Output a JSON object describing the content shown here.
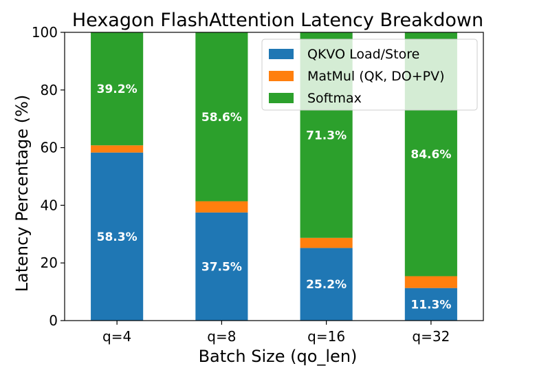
{
  "chart_data": {
    "type": "bar",
    "stacked": true,
    "title": "Hexagon FlashAttention Latency Breakdown",
    "xlabel": "Batch Size (qo_len)",
    "ylabel": "Latency Percentage (%)",
    "ylim": [
      0,
      100
    ],
    "yticks": [
      0,
      20,
      40,
      60,
      80,
      100
    ],
    "categories": [
      "q=4",
      "q=8",
      "q=16",
      "q=32"
    ],
    "series": [
      {
        "name": "QKVO Load/Store",
        "color": "#1f77b4",
        "values": [
          58.3,
          37.5,
          25.2,
          11.3
        ],
        "labels": [
          "58.3%",
          "37.5%",
          "25.2%",
          "11.3%"
        ]
      },
      {
        "name": "MatMul (QK, DO+PV)",
        "color": "#ff7f0e",
        "values": [
          2.5,
          3.9,
          3.5,
          4.1
        ],
        "labels": [
          "",
          "",
          "",
          ""
        ]
      },
      {
        "name": "Softmax",
        "color": "#2ca02c",
        "values": [
          39.2,
          58.6,
          71.3,
          84.6
        ],
        "labels": [
          "39.2%",
          "58.6%",
          "71.3%",
          "84.6%"
        ]
      }
    ],
    "legend_position": "top-right",
    "grid": false
  }
}
